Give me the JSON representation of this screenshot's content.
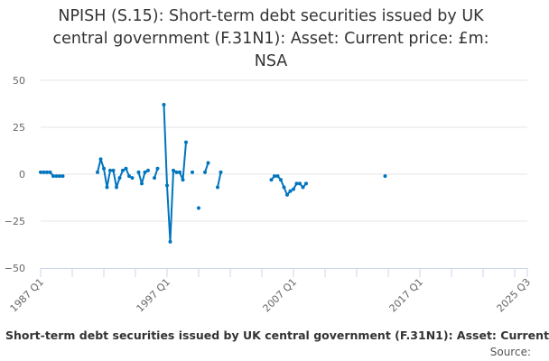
{
  "chart_data": {
    "type": "line",
    "title": "NPISH (S.15): Short-term debt securities issued by UK central government (F.31N1): Asset: Current price: £m: NSA",
    "xlabel": "",
    "ylabel": "",
    "ylim": [
      -50,
      50
    ],
    "yticks": [
      50,
      25,
      0,
      -25,
      -50
    ],
    "ytick_labels": [
      "50",
      "25",
      "0",
      "−25",
      "−50"
    ],
    "x_start": "1987 Q1",
    "x_end": "2025 Q3",
    "xtick_labels": [
      "1987 Q1",
      "1997 Q1",
      "2007 Q1",
      "2017 Q1",
      "2025 Q3"
    ],
    "grid": true,
    "color": "#0075be",
    "series": [
      {
        "name": "NPISH short-term debt securities",
        "points": [
          [
            "1987 Q1",
            1
          ],
          [
            "1987 Q2",
            1
          ],
          [
            "1987 Q3",
            1
          ],
          [
            "1987 Q4",
            1
          ],
          [
            "1988 Q1",
            -1
          ],
          [
            "1988 Q2",
            -1
          ],
          [
            "1988 Q3",
            -1
          ],
          [
            "1988 Q4",
            -1
          ],
          [
            "1991 Q3",
            1
          ],
          [
            "1991 Q4",
            8
          ],
          [
            "1992 Q1",
            3
          ],
          [
            "1992 Q2",
            -7
          ],
          [
            "1992 Q3",
            2
          ],
          [
            "1992 Q4",
            2
          ],
          [
            "1993 Q1",
            -7
          ],
          [
            "1993 Q2",
            -2
          ],
          [
            "1993 Q3",
            2
          ],
          [
            "1993 Q4",
            3
          ],
          [
            "1994 Q1",
            -1
          ],
          [
            "1994 Q2",
            -2
          ],
          [
            "1994 Q4",
            1
          ],
          [
            "1995 Q1",
            -5
          ],
          [
            "1995 Q2",
            1
          ],
          [
            "1995 Q3",
            2
          ],
          [
            "1996 Q1",
            -2
          ],
          [
            "1996 Q2",
            3
          ],
          [
            "1996 Q4",
            37
          ],
          [
            "1997 Q1",
            -6
          ],
          [
            "1997 Q2",
            -36
          ],
          [
            "1997 Q3",
            2
          ],
          [
            "1997 Q4",
            1
          ],
          [
            "1998 Q1",
            1
          ],
          [
            "1998 Q2",
            -3
          ],
          [
            "1998 Q3",
            17
          ],
          [
            "1999 Q1",
            1
          ],
          [
            "1999 Q3",
            -18
          ],
          [
            "2000 Q1",
            1
          ],
          [
            "2000 Q2",
            6
          ],
          [
            "2001 Q1",
            -7
          ],
          [
            "2001 Q2",
            1
          ],
          [
            "2005 Q2",
            -3
          ],
          [
            "2005 Q3",
            -1
          ],
          [
            "2005 Q4",
            -1
          ],
          [
            "2006 Q1",
            -3
          ],
          [
            "2006 Q2",
            -7
          ],
          [
            "2006 Q3",
            -11
          ],
          [
            "2006 Q4",
            -9
          ],
          [
            "2007 Q1",
            -8
          ],
          [
            "2007 Q2",
            -5
          ],
          [
            "2007 Q3",
            -5
          ],
          [
            "2007 Q4",
            -7
          ],
          [
            "2008 Q1",
            -5
          ],
          [
            "2014 Q2",
            -1
          ]
        ]
      }
    ]
  },
  "title_lines": [
    "NPISH (S.15): Short-term debt securities issued by UK",
    "central government (F.31N1): Asset: Current price: £m:",
    "NSA"
  ],
  "caption": "Short-term debt securities issued by UK central government (F.31N1): Asset: Current",
  "source_label": "Source:"
}
